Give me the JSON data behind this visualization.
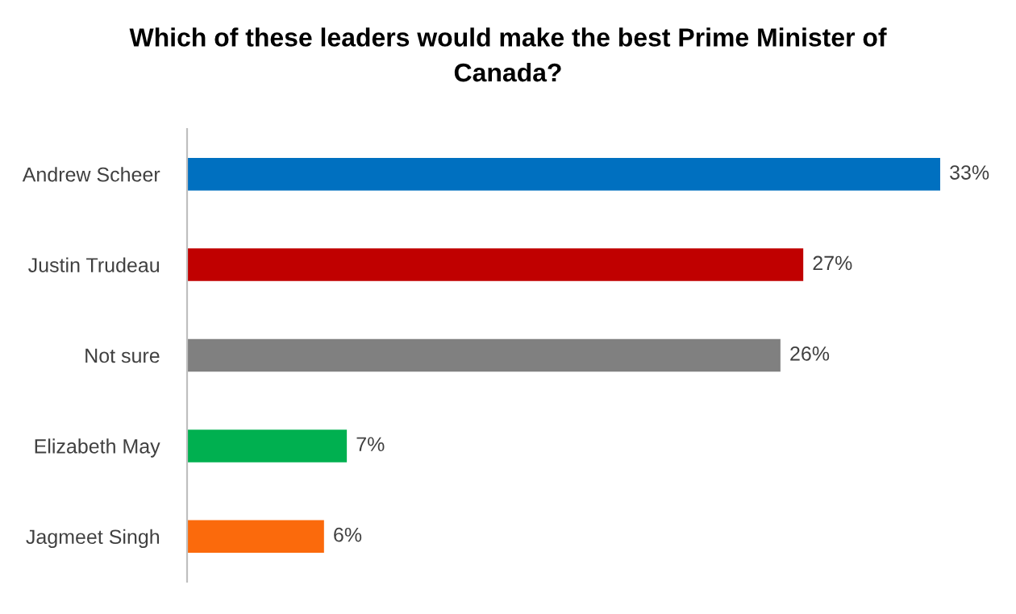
{
  "chart_data": {
    "type": "bar",
    "orientation": "horizontal",
    "title": "Which of these leaders would make the best Prime Minister of\nCanada?",
    "categories": [
      "Andrew Scheer",
      "Justin Trudeau",
      "Not sure",
      "Elizabeth May",
      "Jagmeet Singh"
    ],
    "values": [
      33,
      27,
      26,
      7,
      6
    ],
    "colors": [
      "#0070c0",
      "#c00000",
      "#808080",
      "#00b050",
      "#fb6a0c"
    ],
    "value_labels": [
      "33%",
      "27%",
      "26%",
      "7%",
      "6%"
    ],
    "tick_labels": "y",
    "grid": false,
    "legend": false
  }
}
